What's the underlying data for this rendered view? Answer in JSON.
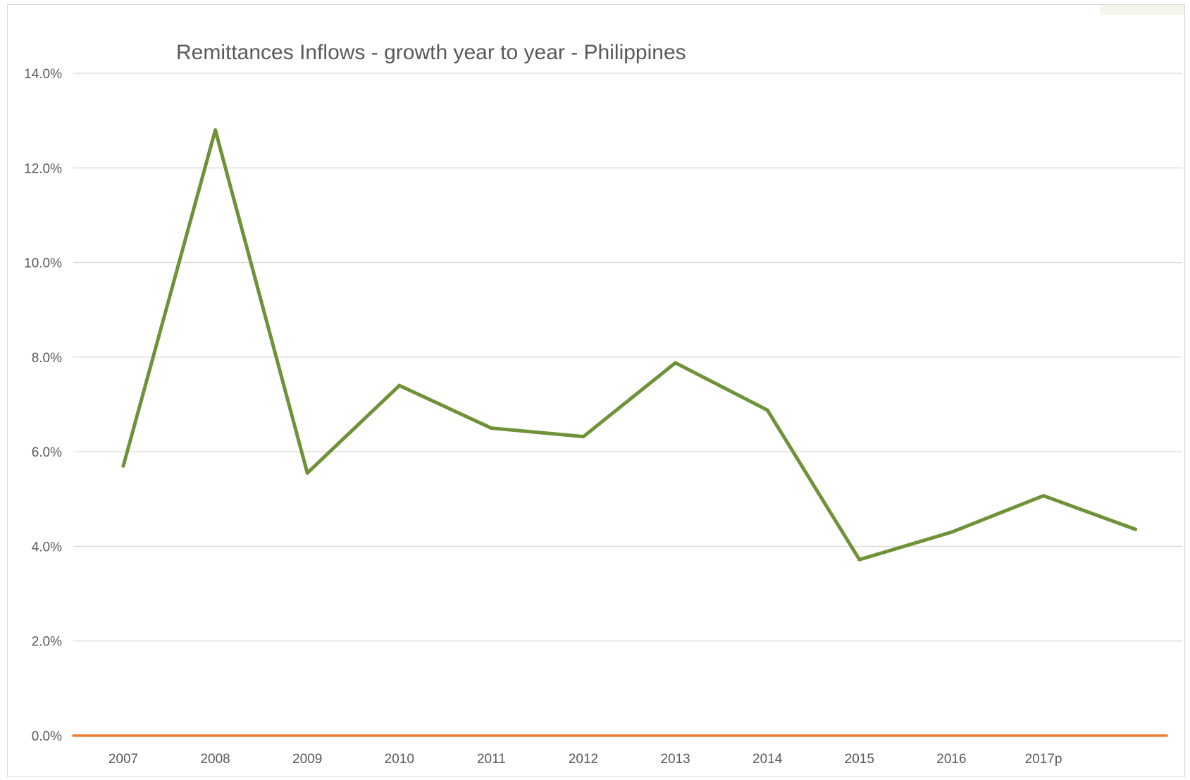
{
  "chart_data": {
    "type": "line",
    "title": "Remittances Inflows - growth year to year - Philippines",
    "xlabel": "",
    "ylabel": "",
    "categories": [
      "2007",
      "2008",
      "2009",
      "2010",
      "2011",
      "2012",
      "2013",
      "2014",
      "2015",
      "2016",
      "2017p",
      ""
    ],
    "series": [
      {
        "color": "#6f9239",
        "values": [
          5.7,
          12.8,
          5.55,
          7.4,
          6.5,
          6.32,
          7.88,
          6.88,
          3.72,
          4.3,
          5.07,
          4.36
        ]
      },
      {
        "color": "#ed7d31",
        "values": [
          0,
          0,
          0,
          0,
          0,
          0,
          0,
          0,
          0,
          0,
          0,
          0
        ]
      }
    ],
    "ylim": [
      0,
      14
    ],
    "yticks": [
      "0.0%",
      "2.0%",
      "4.0%",
      "6.0%",
      "8.0%",
      "10.0%",
      "12.0%",
      "14.0%"
    ],
    "grid": true,
    "legend": "none"
  }
}
